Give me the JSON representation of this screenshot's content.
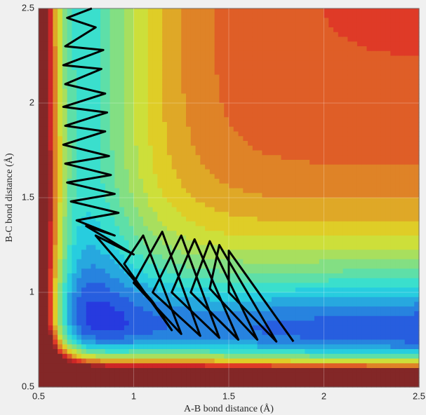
{
  "chart_data": {
    "type": "contour",
    "xlabel": "A-B bond distance (Å)",
    "ylabel": "B-C bond distance (Å)",
    "xlim": [
      0.5,
      2.5
    ],
    "ylim": [
      0.5,
      2.5
    ],
    "xticks": [
      0.5,
      1,
      1.5,
      2,
      2.5
    ],
    "yticks": [
      0.5,
      1,
      1.5,
      2,
      2.5
    ],
    "grid": true,
    "series": [
      {
        "color": "#000000",
        "x": [
          0.78,
          0.65,
          0.8,
          0.64,
          0.84,
          0.63,
          0.83,
          0.64,
          0.85,
          0.63,
          0.86,
          0.64,
          0.85,
          0.63,
          0.87,
          0.64,
          0.88,
          0.65,
          0.9,
          0.67,
          0.92,
          0.7,
          0.9,
          0.75,
          1.0,
          0.8,
          1.1,
          1.2,
          0.95,
          1.05,
          1.25,
          1.0,
          1.15,
          1.35,
          1.1,
          1.25,
          1.45,
          1.2,
          1.32,
          1.55,
          1.3,
          1.4,
          1.65,
          1.4,
          1.45,
          1.75,
          1.5,
          1.5,
          1.84
        ],
        "values": [
          2.5,
          2.45,
          2.4,
          2.3,
          2.28,
          2.2,
          2.18,
          2.1,
          2.05,
          1.98,
          1.95,
          1.88,
          1.85,
          1.78,
          1.72,
          1.68,
          1.62,
          1.58,
          1.52,
          1.48,
          1.42,
          1.38,
          1.3,
          1.35,
          1.2,
          1.3,
          0.95,
          0.8,
          1.15,
          1.3,
          0.78,
          1.05,
          1.32,
          0.77,
          1.0,
          1.3,
          0.76,
          1.0,
          1.28,
          0.75,
          1.0,
          1.27,
          0.75,
          1.02,
          1.25,
          0.74,
          1.0,
          1.22,
          0.74
        ]
      }
    ]
  }
}
